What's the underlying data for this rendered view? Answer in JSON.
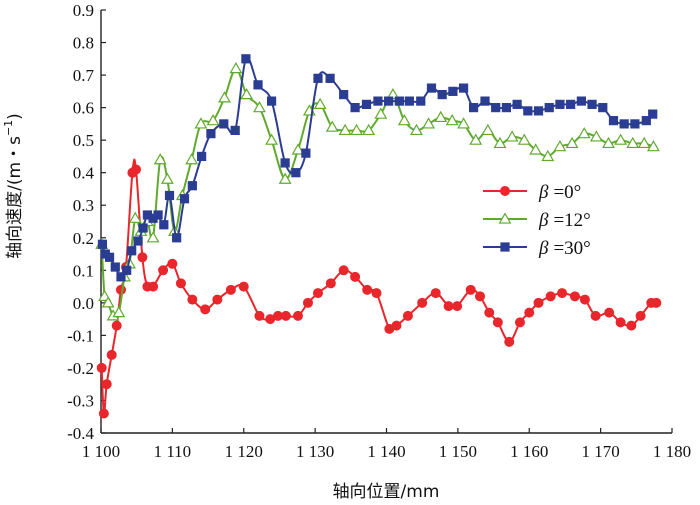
{
  "chart_data": {
    "type": "line",
    "title": "",
    "xlabel": "轴向位置/mm",
    "ylabel_main": "轴向速度/(m・s",
    "ylabel_sup": "−1",
    "ylabel_close": ")",
    "xlim": [
      1100,
      1180
    ],
    "ylim": [
      -0.4,
      0.9
    ],
    "x_ticks": [
      1100,
      1110,
      1120,
      1130,
      1140,
      1150,
      1160,
      1170,
      1180
    ],
    "x_tick_labels": [
      "1 100",
      "1 110",
      "1 120",
      "1 130",
      "1 140",
      "1 150",
      "1 160",
      "1 170",
      "1 180"
    ],
    "y_ticks": [
      -0.4,
      -0.3,
      -0.2,
      -0.1,
      0.0,
      0.1,
      0.2,
      0.3,
      0.4,
      0.5,
      0.6,
      0.7,
      0.8,
      0.9
    ],
    "y_tick_labels": [
      "-0.4",
      "-0.3",
      "-0.2",
      "-0.1",
      "0.0",
      "0.1",
      "0.2",
      "0.3",
      "0.4",
      "0.5",
      "0.6",
      "0.7",
      "0.8",
      "0.9"
    ],
    "legend_position": "center-right",
    "series": [
      {
        "name": "β=0°",
        "legend_symbol": "β",
        "legend_value": "=0°",
        "color": "#e8262b",
        "marker": "circle",
        "x": [
          1100.1,
          1100.4,
          1100.8,
          1101.5,
          1102.2,
          1102.8,
          1103.5,
          1104.4,
          1104.9,
          1105.8,
          1106.5,
          1107.3,
          1108.7,
          1110.0,
          1111.2,
          1112.8,
          1114.6,
          1116.3,
          1118.2,
          1120.0,
          1122.2,
          1123.7,
          1124.8,
          1125.9,
          1127.6,
          1129.0,
          1130.4,
          1132.2,
          1134.0,
          1135.6,
          1137.3,
          1138.6,
          1140.4,
          1141.4,
          1143.0,
          1145.0,
          1146.9,
          1148.7,
          1149.9,
          1151.8,
          1153.1,
          1154.4,
          1155.6,
          1157.2,
          1158.7,
          1160.0,
          1161.3,
          1163.0,
          1164.6,
          1166.4,
          1167.8,
          1169.3,
          1171.2,
          1172.8,
          1174.3,
          1175.6,
          1177.1,
          1177.8
        ],
        "values": [
          -0.2,
          -0.34,
          -0.25,
          -0.16,
          -0.07,
          0.04,
          0.11,
          0.4,
          0.41,
          0.14,
          0.05,
          0.05,
          0.1,
          0.12,
          0.06,
          0.01,
          -0.02,
          0.01,
          0.04,
          0.05,
          -0.04,
          -0.05,
          -0.04,
          -0.04,
          -0.04,
          0.0,
          0.03,
          0.06,
          0.1,
          0.08,
          0.04,
          0.03,
          -0.08,
          -0.07,
          -0.04,
          0.0,
          0.03,
          -0.01,
          -0.01,
          0.04,
          0.02,
          -0.03,
          -0.06,
          -0.12,
          -0.06,
          -0.03,
          0.0,
          0.02,
          0.03,
          0.02,
          0.01,
          -0.04,
          -0.03,
          -0.06,
          -0.07,
          -0.04,
          0.0,
          0.0
        ]
      },
      {
        "name": "β=12°",
        "legend_symbol": "β",
        "legend_value": "=12°",
        "color": "#5faa2d",
        "marker": "triangle-open",
        "x": [
          1100.1,
          1100.5,
          1101.0,
          1101.7,
          1102.5,
          1103.3,
          1104.0,
          1104.8,
          1105.6,
          1106.5,
          1107.3,
          1108.3,
          1109.3,
          1110.3,
          1111.4,
          1112.7,
          1114.0,
          1115.7,
          1117.3,
          1118.9,
          1120.4,
          1122.2,
          1123.9,
          1125.8,
          1127.6,
          1129.2,
          1130.7,
          1132.4,
          1134.2,
          1135.8,
          1137.5,
          1139.2,
          1140.9,
          1142.5,
          1144.2,
          1145.9,
          1147.6,
          1149.2,
          1150.8,
          1152.5,
          1154.2,
          1155.9,
          1157.6,
          1159.3,
          1160.9,
          1162.6,
          1164.3,
          1166.0,
          1167.7,
          1169.4,
          1171.1,
          1172.8,
          1174.5,
          1176.1,
          1177.4
        ],
        "values": [
          0.18,
          0.02,
          0.0,
          -0.04,
          -0.03,
          0.08,
          0.12,
          0.26,
          0.22,
          0.25,
          0.2,
          0.44,
          0.38,
          0.22,
          0.33,
          0.44,
          0.55,
          0.56,
          0.63,
          0.72,
          0.64,
          0.6,
          0.5,
          0.38,
          0.47,
          0.59,
          0.61,
          0.54,
          0.53,
          0.53,
          0.53,
          0.58,
          0.64,
          0.56,
          0.53,
          0.55,
          0.57,
          0.56,
          0.55,
          0.5,
          0.53,
          0.49,
          0.51,
          0.5,
          0.47,
          0.45,
          0.48,
          0.49,
          0.52,
          0.51,
          0.49,
          0.5,
          0.49,
          0.49,
          0.48
        ]
      },
      {
        "name": "β=30°",
        "legend_symbol": "β",
        "legend_value": "=30°",
        "color": "#2b3d92",
        "marker": "square",
        "x": [
          1100.2,
          1100.6,
          1101.2,
          1102.0,
          1102.8,
          1103.6,
          1104.3,
          1105.2,
          1105.9,
          1106.5,
          1107.3,
          1108.0,
          1108.8,
          1109.6,
          1110.6,
          1111.7,
          1112.8,
          1114.1,
          1115.4,
          1117.2,
          1118.8,
          1120.3,
          1122.0,
          1123.9,
          1125.8,
          1127.3,
          1128.7,
          1130.4,
          1132.1,
          1134.0,
          1135.6,
          1137.2,
          1138.8,
          1140.3,
          1141.8,
          1143.2,
          1144.8,
          1146.3,
          1147.8,
          1149.3,
          1150.8,
          1152.2,
          1153.8,
          1155.3,
          1156.8,
          1158.3,
          1159.8,
          1161.3,
          1162.8,
          1164.3,
          1165.8,
          1167.3,
          1168.8,
          1170.3,
          1171.8,
          1173.3,
          1174.8,
          1176.4,
          1177.3
        ],
        "values": [
          0.18,
          0.15,
          0.14,
          0.11,
          0.08,
          0.1,
          0.16,
          0.19,
          0.23,
          0.27,
          0.26,
          0.27,
          0.24,
          0.33,
          0.2,
          0.32,
          0.36,
          0.45,
          0.52,
          0.55,
          0.53,
          0.75,
          0.67,
          0.62,
          0.43,
          0.4,
          0.46,
          0.69,
          0.69,
          0.64,
          0.6,
          0.61,
          0.62,
          0.62,
          0.62,
          0.62,
          0.62,
          0.66,
          0.64,
          0.65,
          0.66,
          0.6,
          0.62,
          0.6,
          0.6,
          0.61,
          0.59,
          0.59,
          0.6,
          0.61,
          0.61,
          0.62,
          0.61,
          0.6,
          0.56,
          0.55,
          0.55,
          0.56,
          0.58
        ]
      }
    ]
  }
}
